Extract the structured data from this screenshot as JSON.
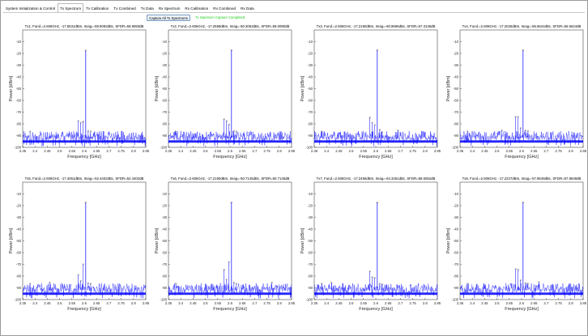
{
  "tabs": [
    {
      "label": "System Initialization & Control",
      "active": false
    },
    {
      "label": "Tx Spectrum",
      "active": true
    },
    {
      "label": "Tx Calibration",
      "active": false
    },
    {
      "label": "Tx Combined",
      "active": false
    },
    {
      "label": "Tx Data",
      "active": false
    },
    {
      "label": "Rx Spectrum",
      "active": false
    },
    {
      "label": "Rx Calibration",
      "active": false
    },
    {
      "label": "Rx Combined",
      "active": false
    },
    {
      "label": "Rx Data",
      "active": false
    }
  ],
  "toolbar": {
    "capture_label": "Capture All Tx Spectrums",
    "status_text": "Tx Spectrum Capture Completed"
  },
  "colors": {
    "trace": "#0000ff",
    "status": "#1bcc1b",
    "axes_background": "#ffffff"
  },
  "chart_data": [
    {
      "type": "line",
      "title": "Tx1, Fund.=2.606GHz, -17.5531dBm, Imag=-59.9083dBc, SFDR=59.9083dB",
      "xlabel": "Frequency [GHz]",
      "ylabel": "Power [dBm]",
      "xlim": [
        2.35,
        2.85
      ],
      "ylim": [
        -100,
        0
      ],
      "xticks": [
        "2.35",
        "2.4",
        "2.45",
        "2.5",
        "2.55",
        "2.6",
        "2.65",
        "2.7",
        "2.75",
        "2.8",
        "2.85"
      ],
      "yticks": [
        "-10",
        "-20",
        "-30",
        "-40",
        "-50",
        "-60",
        "-70",
        "-80",
        "-90",
        "-100"
      ],
      "fundamental": {
        "x": 2.606,
        "y": -17.5531
      },
      "spurs": [
        {
          "x": 2.576,
          "y": -77.5
        },
        {
          "x": 2.586,
          "y": -79
        },
        {
          "x": 2.596,
          "y": -78
        },
        {
          "x": 2.616,
          "y": -86
        },
        {
          "x": 2.626,
          "y": -86.5
        },
        {
          "x": 2.38,
          "y": -86.5
        }
      ],
      "noise_floor": -92
    },
    {
      "type": "line",
      "title": "Tx2, Fund.=2.606GHz, -17.2558dBm, Imag=-60.3063dBc, SFDR=59.0080dB",
      "xlabel": "Frequency [GHz]",
      "ylabel": "Power [dBm]",
      "xlim": [
        2.35,
        2.85
      ],
      "ylim": [
        -100,
        0
      ],
      "xticks": [
        "2.35",
        "2.4",
        "2.45",
        "2.5",
        "2.55",
        "2.6",
        "2.65",
        "2.7",
        "2.75",
        "2.8",
        "2.85"
      ],
      "yticks": [
        "-10",
        "-20",
        "-30",
        "-40",
        "-50",
        "-60",
        "-70",
        "-80",
        "-90",
        "-100"
      ],
      "fundamental": {
        "x": 2.606,
        "y": -17.2558
      },
      "spurs": [
        {
          "x": 2.576,
          "y": -76
        },
        {
          "x": 2.586,
          "y": -77.5
        },
        {
          "x": 2.596,
          "y": -80.5
        },
        {
          "x": 2.616,
          "y": -86
        },
        {
          "x": 2.626,
          "y": -86.5
        },
        {
          "x": 2.38,
          "y": -86.5
        }
      ],
      "noise_floor": -92
    },
    {
      "type": "line",
      "title": "Tx3, Fund.=2.606GHz, -17.2190dBm, Imag=-60.9696dBc, SFDR=57.3136dB",
      "xlabel": "Frequency [GHz]",
      "ylabel": "Power [dBm]",
      "xlim": [
        2.35,
        2.85
      ],
      "ylim": [
        -100,
        0
      ],
      "xticks": [
        "2.35",
        "2.4",
        "2.45",
        "2.5",
        "2.55",
        "2.6",
        "2.65",
        "2.7",
        "2.75",
        "2.8",
        "2.85"
      ],
      "yticks": [
        "-10",
        "-20",
        "-30",
        "-40",
        "-50",
        "-60",
        "-70",
        "-80",
        "-90",
        "-100"
      ],
      "fundamental": {
        "x": 2.606,
        "y": -17.219
      },
      "spurs": [
        {
          "x": 2.576,
          "y": -74.5
        },
        {
          "x": 2.586,
          "y": -79
        },
        {
          "x": 2.596,
          "y": -81
        },
        {
          "x": 2.616,
          "y": -85
        },
        {
          "x": 2.626,
          "y": -87
        },
        {
          "x": 2.69,
          "y": -85.5
        },
        {
          "x": 2.38,
          "y": -86.5
        }
      ],
      "noise_floor": -92
    },
    {
      "type": "line",
      "title": "Tx4, Fund.=2.606GHz, -17.2026dBm, Imag=-56.6624dBc, SFDR=56.6624dB",
      "xlabel": "Frequency [GHz]",
      "ylabel": "Power [dBm]",
      "xlim": [
        2.35,
        2.85
      ],
      "ylim": [
        -100,
        0
      ],
      "xticks": [
        "2.35",
        "2.4",
        "2.45",
        "2.5",
        "2.55",
        "2.6",
        "2.65",
        "2.7",
        "2.75",
        "2.8",
        "2.85"
      ],
      "yticks": [
        "-10",
        "-20",
        "-30",
        "-40",
        "-50",
        "-60",
        "-70",
        "-80",
        "-90",
        "-100"
      ],
      "fundamental": {
        "x": 2.606,
        "y": -17.2026
      },
      "spurs": [
        {
          "x": 2.576,
          "y": -74
        },
        {
          "x": 2.586,
          "y": -74
        },
        {
          "x": 2.596,
          "y": -83.5
        },
        {
          "x": 2.616,
          "y": -85.5
        },
        {
          "x": 2.626,
          "y": -86
        },
        {
          "x": 2.52,
          "y": -85.5
        },
        {
          "x": 2.38,
          "y": -86.5
        }
      ],
      "noise_floor": -92
    },
    {
      "type": "line",
      "title": "Tx5, Fund.=2.606GHz, -17.4061dBm, Imag=-52.4402dBc, SFDR=52.4402dB",
      "xlabel": "Frequency [GHz]",
      "ylabel": "Power [dBm]",
      "xlim": [
        2.35,
        2.85
      ],
      "ylim": [
        -100,
        0
      ],
      "xticks": [
        "2.35",
        "2.4",
        "2.45",
        "2.5",
        "2.55",
        "2.6",
        "2.65",
        "2.7",
        "2.75",
        "2.8",
        "2.85"
      ],
      "yticks": [
        "-10",
        "-20",
        "-30",
        "-40",
        "-50",
        "-60",
        "-70",
        "-80",
        "-90",
        "-100"
      ],
      "fundamental": {
        "x": 2.606,
        "y": -17.4061
      },
      "spurs": [
        {
          "x": 2.576,
          "y": -79
        },
        {
          "x": 2.586,
          "y": -84
        },
        {
          "x": 2.596,
          "y": -70
        },
        {
          "x": 2.616,
          "y": -86
        },
        {
          "x": 2.626,
          "y": -86.5
        },
        {
          "x": 2.46,
          "y": -85.5
        },
        {
          "x": 2.38,
          "y": -86.5
        }
      ],
      "noise_floor": -92
    },
    {
      "type": "line",
      "title": "Tx6, Fund.=2.606GHz, -17.2190dBm, Imag=-50.7145dBc, SFDR=50.7145dB",
      "xlabel": "Frequency [GHz]",
      "ylabel": "Power [dBm]",
      "xlim": [
        2.35,
        2.85
      ],
      "ylim": [
        -100,
        0
      ],
      "xticks": [
        "2.35",
        "2.4",
        "2.45",
        "2.5",
        "2.55",
        "2.6",
        "2.65",
        "2.7",
        "2.75",
        "2.8",
        "2.85"
      ],
      "yticks": [
        "-10",
        "-20",
        "-30",
        "-40",
        "-50",
        "-60",
        "-70",
        "-80",
        "-90",
        "-100"
      ],
      "fundamental": {
        "x": 2.606,
        "y": -17.219
      },
      "spurs": [
        {
          "x": 2.576,
          "y": -74.5
        },
        {
          "x": 2.586,
          "y": -83
        },
        {
          "x": 2.596,
          "y": -68
        },
        {
          "x": 2.616,
          "y": -85.5
        },
        {
          "x": 2.626,
          "y": -86.5
        },
        {
          "x": 2.77,
          "y": -85.5
        },
        {
          "x": 2.38,
          "y": -86.5
        }
      ],
      "noise_floor": -92
    },
    {
      "type": "line",
      "title": "Tx7, Fund.=2.606GHz, -17.2456dBm, Imag=-64.3451dBc, SFDR=58.6052dB",
      "xlabel": "Frequency [GHz]",
      "ylabel": "Power [dBm]",
      "xlim": [
        2.35,
        2.85
      ],
      "ylim": [
        -100,
        0
      ],
      "xticks": [
        "2.35",
        "2.4",
        "2.45",
        "2.5",
        "2.55",
        "2.6",
        "2.65",
        "2.7",
        "2.75",
        "2.8",
        "2.85"
      ],
      "yticks": [
        "-10",
        "-20",
        "-30",
        "-40",
        "-50",
        "-60",
        "-70",
        "-80",
        "-90",
        "-100"
      ],
      "fundamental": {
        "x": 2.606,
        "y": -17.2456
      },
      "spurs": [
        {
          "x": 2.576,
          "y": -76
        },
        {
          "x": 2.586,
          "y": -81
        },
        {
          "x": 2.596,
          "y": -81.5
        },
        {
          "x": 2.616,
          "y": -86.5
        },
        {
          "x": 2.626,
          "y": -87
        },
        {
          "x": 2.42,
          "y": -85.5
        },
        {
          "x": 2.38,
          "y": -86.5
        }
      ],
      "noise_floor": -92
    },
    {
      "type": "line",
      "title": "Tx8, Fund.=2.606GHz, -17.2227dBm, Imag=-57.9649dBc, SFDR=57.9649dB",
      "xlabel": "Frequency [GHz]",
      "ylabel": "Power [dBm]",
      "xlim": [
        2.35,
        2.85
      ],
      "ylim": [
        -100,
        0
      ],
      "xticks": [
        "2.35",
        "2.4",
        "2.45",
        "2.5",
        "2.55",
        "2.6",
        "2.65",
        "2.7",
        "2.75",
        "2.8",
        "2.85"
      ],
      "yticks": [
        "-10",
        "-20",
        "-30",
        "-40",
        "-50",
        "-60",
        "-70",
        "-80",
        "-90",
        "-100"
      ],
      "fundamental": {
        "x": 2.606,
        "y": -17.2227
      },
      "spurs": [
        {
          "x": 2.576,
          "y": -74
        },
        {
          "x": 2.586,
          "y": -74.5
        },
        {
          "x": 2.596,
          "y": -83.5
        },
        {
          "x": 2.616,
          "y": -86
        },
        {
          "x": 2.626,
          "y": -86.5
        },
        {
          "x": 2.67,
          "y": -85
        },
        {
          "x": 2.38,
          "y": -86.5
        }
      ],
      "noise_floor": -92
    }
  ]
}
